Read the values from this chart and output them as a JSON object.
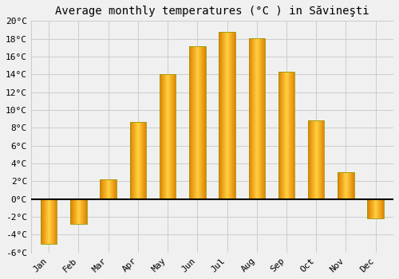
{
  "title": "Average monthly temperatures (°C ) in Săvineşti",
  "months": [
    "Jan",
    "Feb",
    "Mar",
    "Apr",
    "May",
    "Jun",
    "Jul",
    "Aug",
    "Sep",
    "Oct",
    "Nov",
    "Dec"
  ],
  "values": [
    -5.0,
    -2.8,
    2.2,
    8.7,
    14.0,
    17.2,
    18.8,
    18.1,
    14.3,
    8.8,
    3.0,
    -2.2
  ],
  "bar_color_edge": "#E08000",
  "bar_color_center": "#FFD040",
  "ylim": [
    -6,
    20
  ],
  "yticks": [
    -6,
    -4,
    -2,
    0,
    2,
    4,
    6,
    8,
    10,
    12,
    14,
    16,
    18,
    20
  ],
  "ytick_labels": [
    "-6°C",
    "-4°C",
    "-2°C",
    "0°C",
    "2°C",
    "4°C",
    "6°C",
    "8°C",
    "10°C",
    "12°C",
    "14°C",
    "16°C",
    "18°C",
    "20°C"
  ],
  "background_color": "#f0f0f0",
  "grid_color": "#cccccc",
  "title_fontsize": 10,
  "tick_fontsize": 8,
  "bar_width": 0.55
}
